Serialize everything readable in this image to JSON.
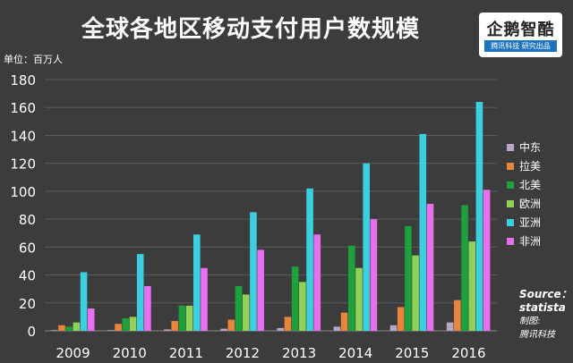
{
  "header": {
    "title": "全球各地区移动支付用户数规模",
    "unit_label": "单位：百万人"
  },
  "logo": {
    "name": "企鹅智酷",
    "tagline": "腾讯科技 研究出品"
  },
  "source": {
    "line1": "Source：",
    "line2": "statista",
    "line3": "制图:",
    "line4": "腾讯科技"
  },
  "chart_data": {
    "type": "bar",
    "categories": [
      "2009",
      "2010",
      "2011",
      "2012",
      "2013",
      "2014",
      "2015",
      "2016"
    ],
    "ylim": [
      0,
      180
    ],
    "yticks": [
      0,
      20,
      40,
      60,
      80,
      100,
      120,
      140,
      160,
      180
    ],
    "grid": true,
    "legend_position": "right",
    "series": [
      {
        "name": "中东",
        "color": "#b8a6c8",
        "values": [
          0.5,
          0.5,
          1,
          1.5,
          2,
          3,
          4,
          6
        ]
      },
      {
        "name": "拉美",
        "color": "#e8853a",
        "values": [
          4,
          5,
          7,
          8,
          10,
          13,
          17,
          22
        ]
      },
      {
        "name": "北美",
        "color": "#1ea03c",
        "values": [
          3,
          9,
          18,
          32,
          46,
          61,
          75,
          90
        ]
      },
      {
        "name": "欧洲",
        "color": "#8fd257",
        "values": [
          6,
          10,
          18,
          26,
          35,
          45,
          54,
          64
        ]
      },
      {
        "name": "亚洲",
        "color": "#3ccfe0",
        "values": [
          42,
          55,
          69,
          85,
          102,
          120,
          141,
          164
        ]
      },
      {
        "name": "非洲",
        "color": "#e86ff0",
        "values": [
          16,
          32,
          45,
          58,
          69,
          80,
          91,
          101
        ]
      }
    ]
  }
}
